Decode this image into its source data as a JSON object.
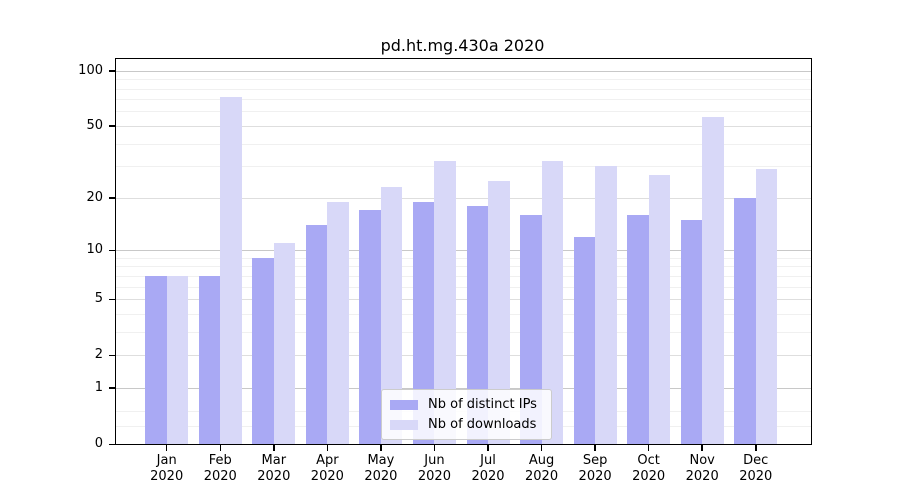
{
  "chart_data": {
    "type": "bar",
    "title": "pd.ht.mg.430a 2020",
    "categories": [
      "Jan",
      "Feb",
      "Mar",
      "Apr",
      "May",
      "Jun",
      "Jul",
      "Aug",
      "Sep",
      "Oct",
      "Nov",
      "Dec"
    ],
    "category_year": "2020",
    "series": [
      {
        "name": "Nb of distinct IPs",
        "color": "#a9a9f4",
        "values": [
          7,
          7,
          9,
          14,
          17,
          19,
          18,
          16,
          12,
          16,
          15,
          20
        ]
      },
      {
        "name": "Nb of downloads",
        "color": "#d8d8f8",
        "values": [
          7,
          72,
          11,
          19,
          23,
          32,
          25,
          32,
          30,
          27,
          56,
          29
        ]
      }
    ],
    "y_axis": {
      "scale": "log1p",
      "ticks": [
        0,
        1,
        2,
        5,
        10,
        20,
        50,
        100
      ],
      "minor_ticks": [
        0.25,
        0.5,
        3,
        4,
        6,
        7,
        8,
        9,
        30,
        40,
        60,
        70,
        80,
        90
      ],
      "range": [
        0,
        116
      ]
    },
    "x_axis": {
      "label_lines": 2
    },
    "grid": true,
    "legend": {
      "position": "lower center"
    },
    "colors": {
      "background": "#ffffff",
      "spine": "#000000",
      "grid_major": "#c8c8c8",
      "grid_minor": "#f0f0f0"
    }
  }
}
